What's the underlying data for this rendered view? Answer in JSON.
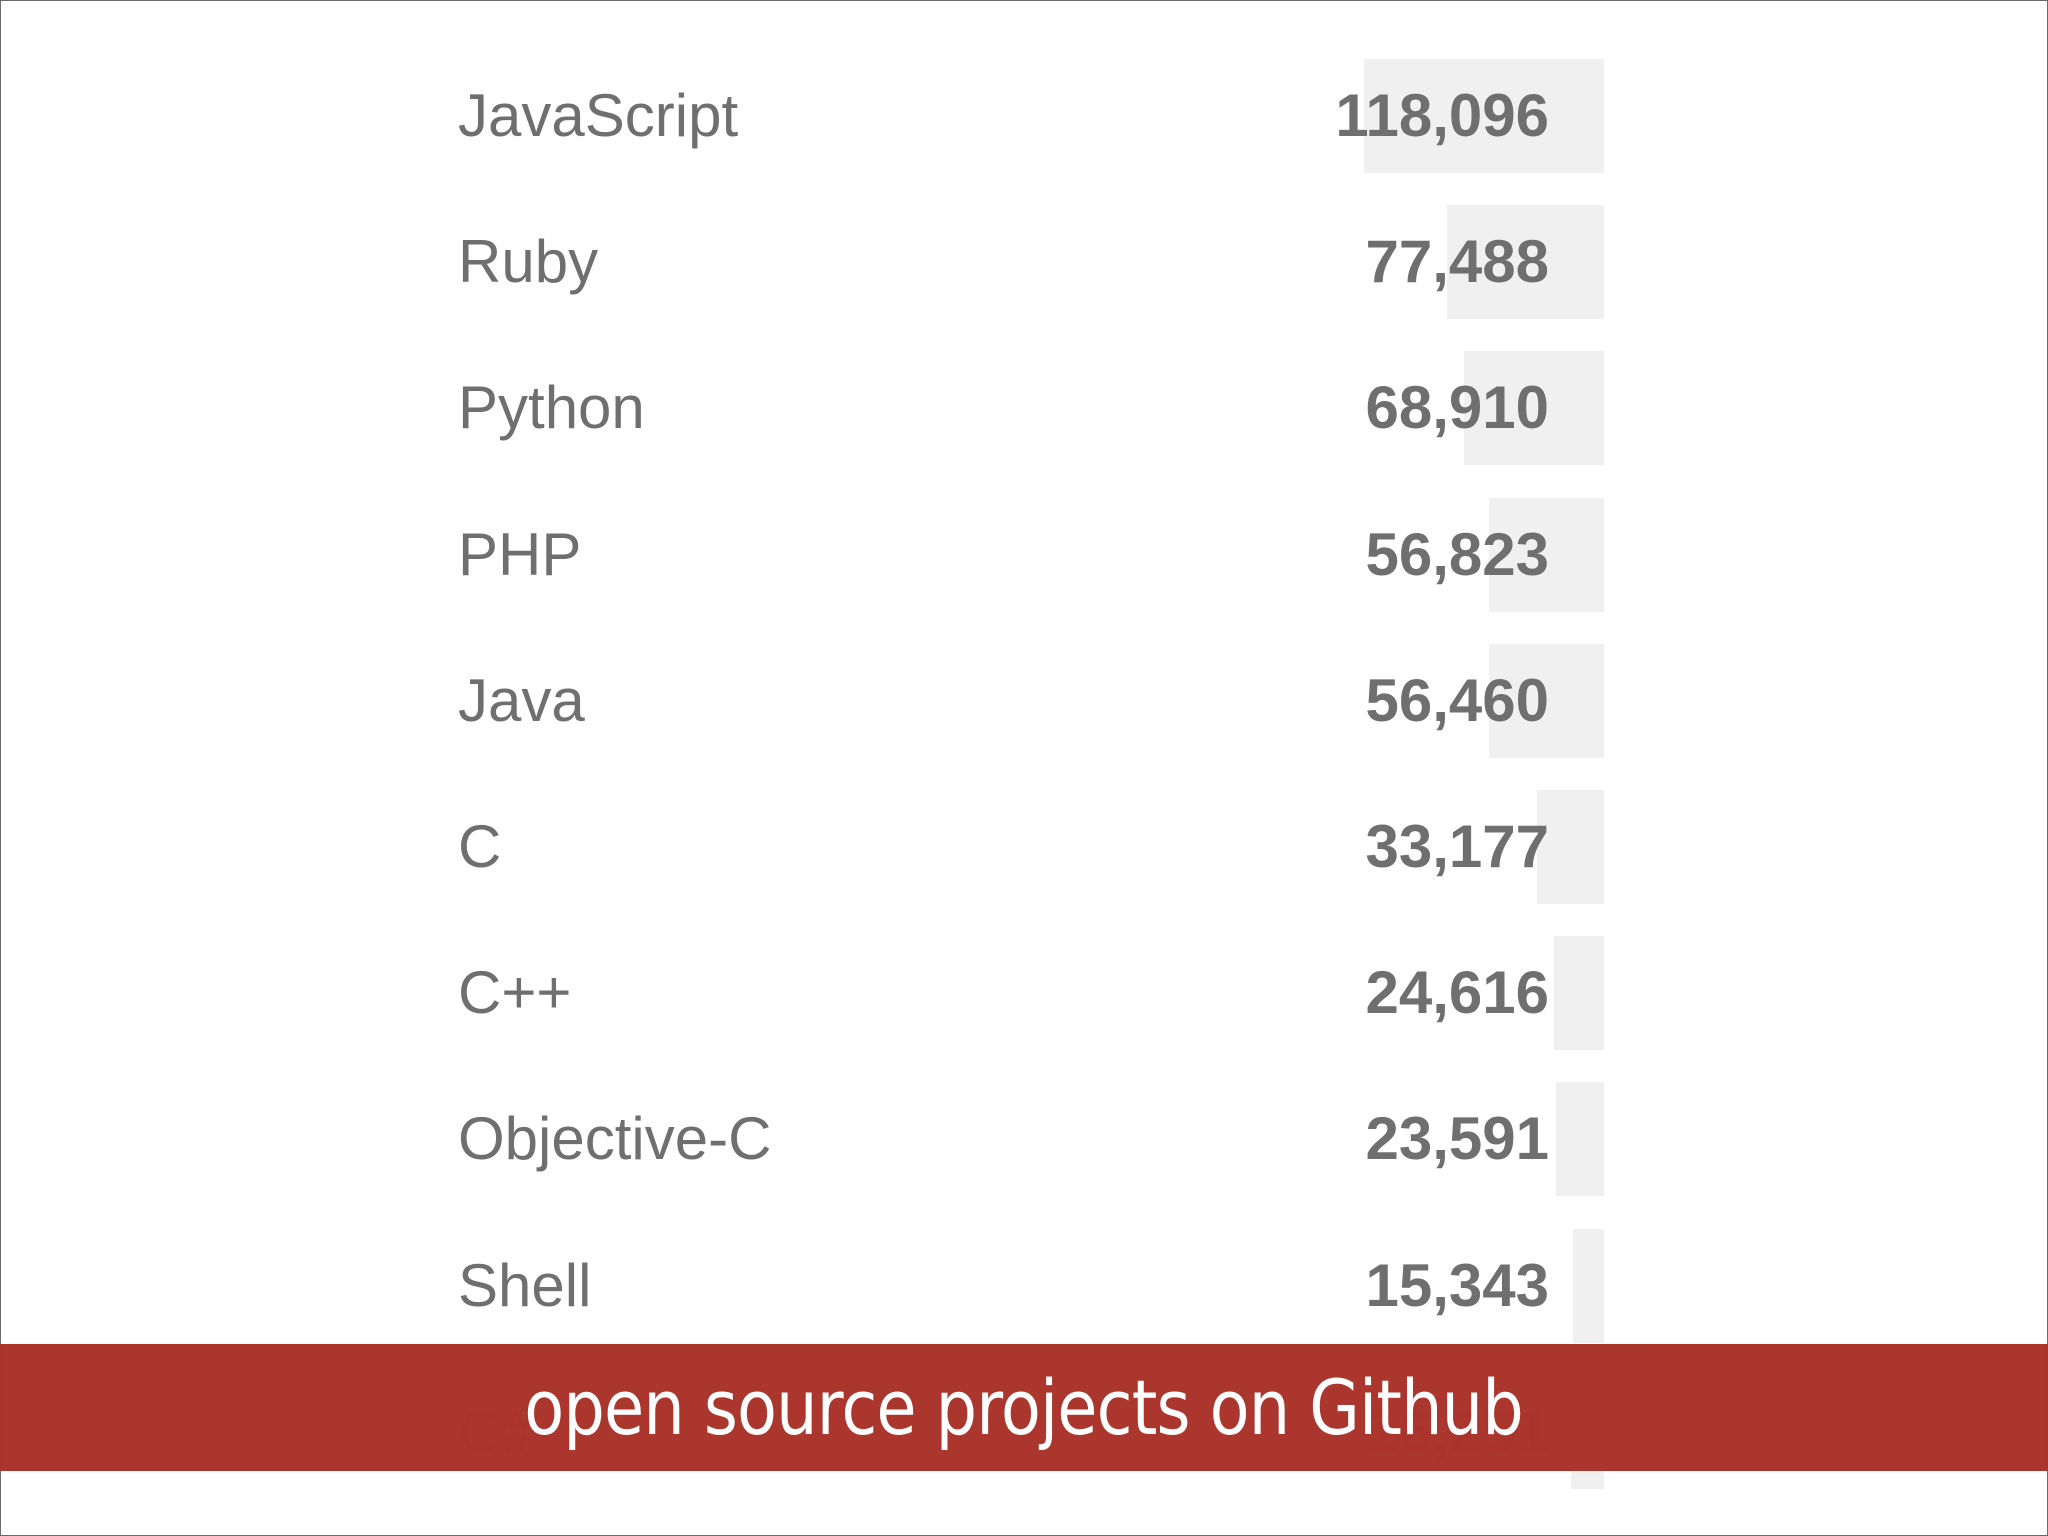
{
  "caption": "open source projects on Github",
  "colors": {
    "bar": "#f0f0f0",
    "text": "#6f6f6f",
    "banner": "#ab342b",
    "banner_text": "#ffffff"
  },
  "chart_data": {
    "type": "bar",
    "orientation": "horizontal",
    "categories": [
      "JavaScript",
      "Ruby",
      "Python",
      "PHP",
      "Java",
      "C",
      "C++",
      "Objective-C",
      "Shell",
      "C#"
    ],
    "value_labels": [
      "118,096",
      "77,488",
      "68,910",
      "56,823",
      "56,460",
      "33,177",
      "24,616",
      "23,591",
      "15,343",
      "16,251"
    ],
    "values": [
      118096,
      77488,
      68910,
      56823,
      56460,
      33177,
      24616,
      23591,
      15343,
      16251
    ],
    "title": "",
    "xlabel": "",
    "ylabel": "",
    "xlim": [
      0,
      118096
    ],
    "grid": false,
    "legend": "none"
  }
}
